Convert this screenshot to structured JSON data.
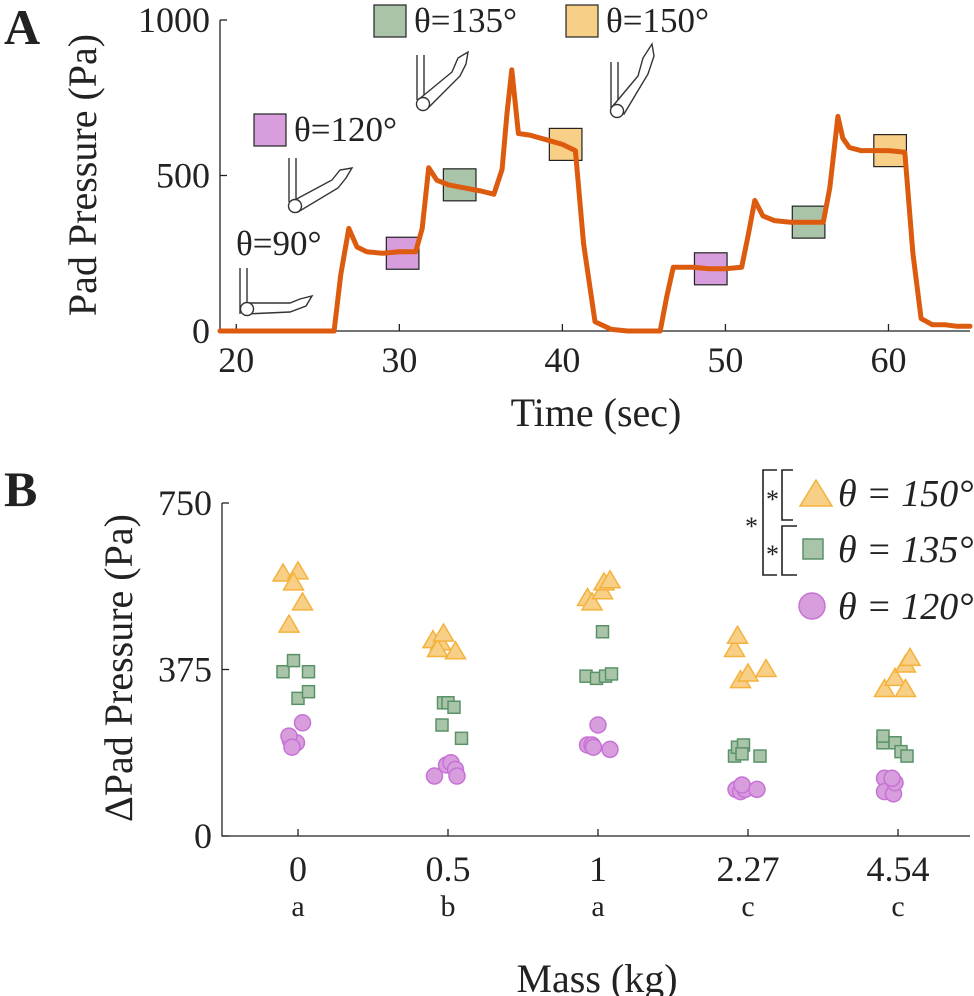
{
  "panel_a": {
    "label": "A",
    "markers": [
      {
        "label": "θ=90°",
        "color": ""
      },
      {
        "label": "θ=120°",
        "color": "#d89ddc"
      },
      {
        "label": "θ=135°",
        "color": "#a9c4a9"
      },
      {
        "label": "θ=150°",
        "color": "#f8cf87"
      }
    ]
  },
  "panel_b": {
    "label": "B",
    "significance": "*"
  },
  "colors": {
    "line": "#dd5b0e",
    "purple": "#c772d6",
    "green": "#5a9268",
    "orange": "#f4b23c",
    "purple_fill": "#d89ddc",
    "green_fill": "#a9c4a9",
    "orange_fill": "#f8cf87"
  },
  "chart_data": [
    {
      "type": "line",
      "title": "",
      "xlabel": "Time (sec)",
      "ylabel": "Pad Pressure (Pa)",
      "xlim": [
        19,
        65
      ],
      "ylim": [
        0,
        1000
      ],
      "xticks": [
        20,
        30,
        40,
        50,
        60
      ],
      "yticks": [
        0,
        500,
        1000
      ],
      "series": [
        {
          "name": "pressure",
          "x": [
            19,
            26,
            26.4,
            26.9,
            27.4,
            28,
            29,
            30,
            31,
            31.4,
            31.8,
            32.3,
            33,
            34,
            35,
            35.8,
            36.3,
            36.6,
            36.9,
            37.3,
            38,
            39,
            40,
            40.8,
            41.3,
            42,
            43,
            44,
            46,
            46.4,
            46.8,
            47.3,
            48,
            49,
            50,
            51,
            51.4,
            51.8,
            52.3,
            53,
            54,
            55,
            56,
            56.4,
            56.9,
            57.2,
            57.6,
            58.3,
            59,
            60,
            61,
            61.5,
            62,
            62.7,
            63.5,
            64.2,
            65
          ],
          "y": [
            0,
            0,
            180,
            330,
            270,
            255,
            250,
            255,
            255,
            330,
            525,
            485,
            470,
            460,
            450,
            440,
            520,
            700,
            840,
            635,
            630,
            615,
            600,
            580,
            280,
            30,
            5,
            0,
            0,
            110,
            205,
            205,
            205,
            200,
            200,
            205,
            310,
            420,
            370,
            355,
            350,
            350,
            350,
            460,
            690,
            620,
            590,
            580,
            580,
            580,
            575,
            250,
            40,
            20,
            20,
            15,
            15
          ]
        }
      ],
      "annotations": [
        {
          "label": "θ=90°",
          "color": "",
          "x_from": 30,
          "x_to": 30
        },
        {
          "label": "θ=120°",
          "color": "#d89ddc",
          "x_from": 29.2,
          "x_to": 31.2,
          "y": 250
        },
        {
          "label": "θ=135°",
          "color": "#a9c4a9",
          "x_from": 32.7,
          "x_to": 34.7,
          "y": 470
        },
        {
          "label": "θ=150°",
          "color": "#f8cf87",
          "x_from": 39.2,
          "x_to": 41.2,
          "y": 600
        },
        {
          "label": "θ=120°",
          "color": "#d89ddc",
          "x_from": 48.1,
          "x_to": 50.1,
          "y": 200
        },
        {
          "label": "θ=135°",
          "color": "#a9c4a9",
          "x_from": 54.1,
          "x_to": 56.1,
          "y": 350
        },
        {
          "label": "θ=150°",
          "color": "#f8cf87",
          "x_from": 59.1,
          "x_to": 61.1,
          "y": 580
        }
      ]
    },
    {
      "type": "scatter",
      "title": "",
      "xlabel": "Mass (kg)",
      "ylabel": "ΔPad Pressure (Pa)",
      "ylim": [
        0,
        750
      ],
      "yticks": [
        0,
        375,
        750
      ],
      "categories": [
        "0",
        "0.5",
        "1",
        "2.27",
        "4.54"
      ],
      "group_letters": [
        "a",
        "b",
        "a",
        "c",
        "c"
      ],
      "legend_position": "top-right",
      "series": [
        {
          "name": "θ = 150°",
          "marker": "triangle",
          "points": [
            {
              "cat": 0,
              "offset": -0.1,
              "y": 590
            },
            {
              "cat": 0,
              "offset": 0.0,
              "y": 595
            },
            {
              "cat": 0,
              "offset": -0.03,
              "y": 570
            },
            {
              "cat": 0,
              "offset": 0.03,
              "y": 525
            },
            {
              "cat": 0,
              "offset": -0.06,
              "y": 475
            },
            {
              "cat": 1,
              "offset": -0.1,
              "y": 440
            },
            {
              "cat": 1,
              "offset": -0.05,
              "y": 435
            },
            {
              "cat": 1,
              "offset": 0.05,
              "y": 415
            },
            {
              "cat": 1,
              "offset": -0.07,
              "y": 420
            },
            {
              "cat": 1,
              "offset": -0.03,
              "y": 455
            },
            {
              "cat": 2,
              "offset": -0.07,
              "y": 535
            },
            {
              "cat": 2,
              "offset": -0.04,
              "y": 525
            },
            {
              "cat": 2,
              "offset": 0.03,
              "y": 550
            },
            {
              "cat": 2,
              "offset": 0.04,
              "y": 570
            },
            {
              "cat": 2,
              "offset": 0.08,
              "y": 575
            },
            {
              "cat": 3,
              "offset": -0.09,
              "y": 420
            },
            {
              "cat": 3,
              "offset": -0.07,
              "y": 450
            },
            {
              "cat": 3,
              "offset": -0.05,
              "y": 350
            },
            {
              "cat": 3,
              "offset": 0.0,
              "y": 365
            },
            {
              "cat": 3,
              "offset": 0.12,
              "y": 375
            },
            {
              "cat": 4,
              "offset": -0.09,
              "y": 330
            },
            {
              "cat": 4,
              "offset": -0.02,
              "y": 355
            },
            {
              "cat": 4,
              "offset": 0.05,
              "y": 330
            },
            {
              "cat": 4,
              "offset": 0.05,
              "y": 385
            },
            {
              "cat": 4,
              "offset": 0.08,
              "y": 400
            }
          ]
        },
        {
          "name": "θ = 135°",
          "marker": "square",
          "points": [
            {
              "cat": 0,
              "offset": -0.1,
              "y": 370
            },
            {
              "cat": 0,
              "offset": -0.03,
              "y": 395
            },
            {
              "cat": 0,
              "offset": 0.0,
              "y": 310
            },
            {
              "cat": 0,
              "offset": 0.07,
              "y": 325
            },
            {
              "cat": 0,
              "offset": 0.07,
              "y": 370
            },
            {
              "cat": 1,
              "offset": -0.04,
              "y": 250
            },
            {
              "cat": 1,
              "offset": -0.03,
              "y": 300
            },
            {
              "cat": 1,
              "offset": 0.0,
              "y": 300
            },
            {
              "cat": 1,
              "offset": 0.04,
              "y": 290
            },
            {
              "cat": 1,
              "offset": 0.09,
              "y": 220
            },
            {
              "cat": 2,
              "offset": -0.08,
              "y": 360
            },
            {
              "cat": 2,
              "offset": -0.01,
              "y": 355
            },
            {
              "cat": 2,
              "offset": 0.03,
              "y": 460
            },
            {
              "cat": 2,
              "offset": 0.05,
              "y": 360
            },
            {
              "cat": 2,
              "offset": 0.09,
              "y": 365
            },
            {
              "cat": 3,
              "offset": -0.09,
              "y": 180
            },
            {
              "cat": 3,
              "offset": -0.07,
              "y": 200
            },
            {
              "cat": 3,
              "offset": -0.03,
              "y": 205
            },
            {
              "cat": 3,
              "offset": -0.04,
              "y": 185
            },
            {
              "cat": 3,
              "offset": 0.08,
              "y": 180
            },
            {
              "cat": 4,
              "offset": -0.1,
              "y": 210
            },
            {
              "cat": 4,
              "offset": -0.1,
              "y": 225
            },
            {
              "cat": 4,
              "offset": -0.02,
              "y": 210
            },
            {
              "cat": 4,
              "offset": 0.02,
              "y": 190
            },
            {
              "cat": 4,
              "offset": 0.06,
              "y": 180
            }
          ]
        },
        {
          "name": "θ = 120°",
          "marker": "circle",
          "points": [
            {
              "cat": 0,
              "offset": -0.05,
              "y": 215
            },
            {
              "cat": 0,
              "offset": -0.01,
              "y": 210
            },
            {
              "cat": 0,
              "offset": 0.03,
              "y": 255
            },
            {
              "cat": 0,
              "offset": -0.06,
              "y": 225
            },
            {
              "cat": 0,
              "offset": -0.04,
              "y": 200
            },
            {
              "cat": 1,
              "offset": -0.09,
              "y": 135
            },
            {
              "cat": 1,
              "offset": -0.01,
              "y": 160
            },
            {
              "cat": 1,
              "offset": 0.02,
              "y": 165
            },
            {
              "cat": 1,
              "offset": 0.05,
              "y": 150
            },
            {
              "cat": 1,
              "offset": 0.06,
              "y": 135
            },
            {
              "cat": 2,
              "offset": -0.07,
              "y": 205
            },
            {
              "cat": 2,
              "offset": -0.04,
              "y": 205
            },
            {
              "cat": 2,
              "offset": -0.03,
              "y": 200
            },
            {
              "cat": 2,
              "offset": 0.0,
              "y": 250
            },
            {
              "cat": 2,
              "offset": 0.08,
              "y": 195
            },
            {
              "cat": 3,
              "offset": -0.08,
              "y": 105
            },
            {
              "cat": 3,
              "offset": -0.05,
              "y": 100
            },
            {
              "cat": 3,
              "offset": -0.02,
              "y": 105
            },
            {
              "cat": 3,
              "offset": -0.04,
              "y": 115
            },
            {
              "cat": 3,
              "offset": 0.06,
              "y": 105
            },
            {
              "cat": 4,
              "offset": -0.09,
              "y": 130
            },
            {
              "cat": 4,
              "offset": -0.09,
              "y": 100
            },
            {
              "cat": 4,
              "offset": -0.03,
              "y": 95
            },
            {
              "cat": 4,
              "offset": -0.02,
              "y": 120
            },
            {
              "cat": 4,
              "offset": -0.04,
              "y": 130
            }
          ]
        }
      ]
    }
  ]
}
